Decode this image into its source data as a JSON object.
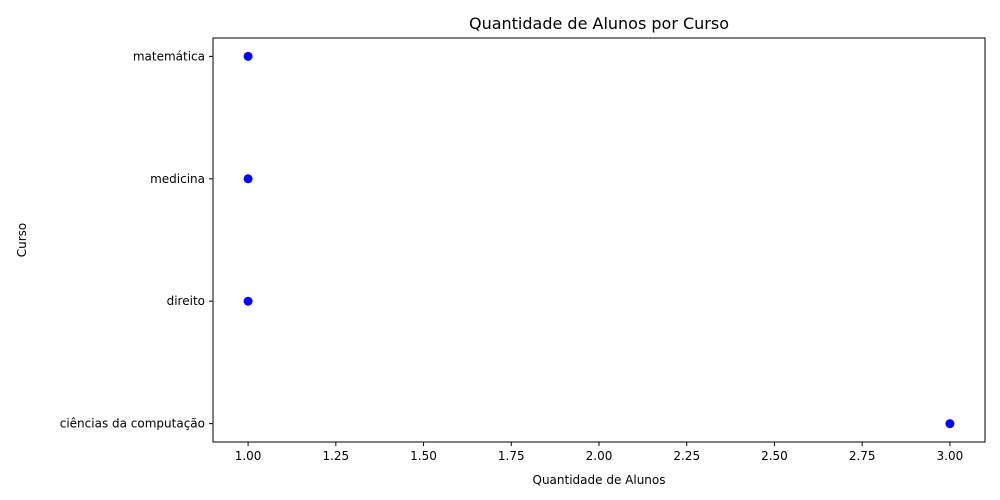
{
  "chart_data": {
    "type": "scatter",
    "title": "Quantidade de Alunos por Curso",
    "xlabel": "Quantidade de Alunos",
    "ylabel": "Curso",
    "categories": [
      "ciências da computação",
      "direito",
      "medicina",
      "matemática"
    ],
    "values": [
      3,
      1,
      1,
      1
    ],
    "xlim": [
      0.9,
      3.1
    ],
    "x_ticks": [
      1.0,
      1.25,
      1.5,
      1.75,
      2.0,
      2.25,
      2.5,
      2.75,
      3.0
    ],
    "x_tick_labels": [
      "1.00",
      "1.25",
      "1.50",
      "1.75",
      "2.00",
      "2.25",
      "2.50",
      "2.75",
      "3.00"
    ],
    "grid": false,
    "point_color": "#0000ff"
  }
}
